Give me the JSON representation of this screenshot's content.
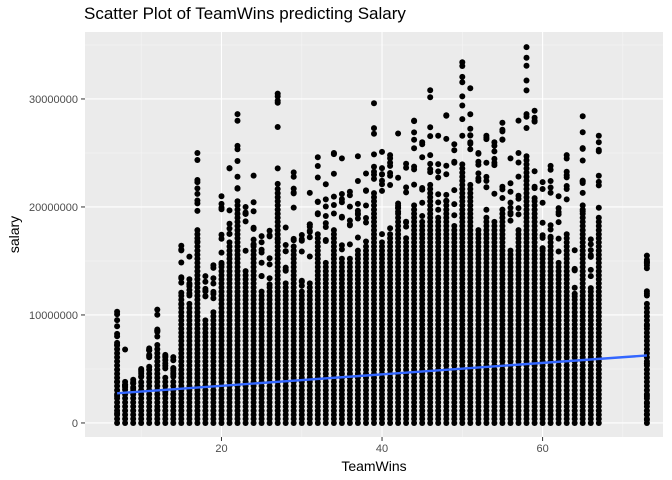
{
  "chart_data": {
    "type": "scatter",
    "title": "Scatter Plot of TeamWins predicting Salary",
    "xlabel": "TeamWins",
    "ylabel": "salary",
    "xlim": [
      3,
      75
    ],
    "ylim": [
      -1300000,
      36200000
    ],
    "x_ticks": [
      20,
      40,
      60
    ],
    "x_tick_labels": [
      "20",
      "40",
      "60"
    ],
    "y_ticks": [
      0,
      10000000,
      20000000,
      30000000
    ],
    "y_tick_labels": [
      "0",
      "10000000",
      "20000000",
      "30000000"
    ],
    "grid": true,
    "point_color": "#000000",
    "trend_line": {
      "color": "#3366ff",
      "x": [
        7,
        73
      ],
      "y": [
        2750000,
        6250000
      ]
    },
    "upper_envelope": [
      [
        7,
        10300000
      ],
      [
        8,
        3800000
      ],
      [
        9,
        4000000
      ],
      [
        10,
        5000000
      ],
      [
        11,
        6900000
      ],
      [
        12,
        10500000
      ],
      [
        13,
        6300000
      ],
      [
        14,
        5800000
      ],
      [
        15,
        16400000
      ],
      [
        16,
        15400000
      ],
      [
        17,
        25000000
      ],
      [
        18,
        13600000
      ],
      [
        19,
        14600000
      ],
      [
        20,
        21000000
      ],
      [
        21,
        23600000
      ],
      [
        22,
        28600000
      ],
      [
        23,
        20000000
      ],
      [
        24,
        22900000
      ],
      [
        25,
        17300000
      ],
      [
        26,
        17800000
      ],
      [
        27,
        30500000
      ],
      [
        28,
        18100000
      ],
      [
        29,
        23200000
      ],
      [
        30,
        17400000
      ],
      [
        31,
        18400000
      ],
      [
        32,
        24600000
      ],
      [
        33,
        20700000
      ],
      [
        34,
        25000000
      ],
      [
        35,
        21200000
      ],
      [
        36,
        21400000
      ],
      [
        37,
        22400000
      ],
      [
        38,
        23100000
      ],
      [
        39,
        29600000
      ],
      [
        40,
        23600000
      ],
      [
        41,
        24800000
      ],
      [
        42,
        26800000
      ],
      [
        43,
        24000000
      ],
      [
        44,
        28000000
      ],
      [
        45,
        26000000
      ],
      [
        46,
        30800000
      ],
      [
        47,
        26600000
      ],
      [
        48,
        28500000
      ],
      [
        49,
        25800000
      ],
      [
        50,
        33400000
      ],
      [
        51,
        31000000
      ],
      [
        52,
        25000000
      ],
      [
        53,
        26600000
      ],
      [
        54,
        26000000
      ],
      [
        55,
        27800000
      ],
      [
        56,
        22200000
      ],
      [
        57,
        25000000
      ],
      [
        58,
        34800000
      ],
      [
        59,
        28900000
      ],
      [
        60,
        22300000
      ],
      [
        61,
        23800000
      ],
      [
        62,
        21000000
      ],
      [
        63,
        24800000
      ],
      [
        64,
        16000000
      ],
      [
        65,
        28400000
      ],
      [
        66,
        17000000
      ],
      [
        67,
        26600000
      ],
      [
        73,
        15500000
      ]
    ],
    "extra_points": [
      [
        7,
        7200000
      ],
      [
        7,
        3800000
      ],
      [
        7,
        2500000
      ],
      [
        7,
        1500000
      ],
      [
        7,
        900000
      ],
      [
        8,
        6800000
      ],
      [
        10,
        3000000
      ],
      [
        11,
        5200000
      ],
      [
        12,
        1200000
      ],
      [
        13,
        2900000
      ],
      [
        14,
        6100000
      ],
      [
        15,
        13000000
      ],
      [
        15,
        11000000
      ],
      [
        16,
        12000000
      ],
      [
        17,
        22500000
      ],
      [
        17,
        20600000
      ],
      [
        17,
        16800000
      ],
      [
        20,
        14700000
      ],
      [
        22,
        22800000
      ],
      [
        24,
        19600000
      ],
      [
        27,
        17000000
      ],
      [
        29,
        22800000
      ],
      [
        31,
        21300000
      ],
      [
        33,
        22100000
      ],
      [
        35,
        24500000
      ],
      [
        37,
        24700000
      ],
      [
        39,
        22600000
      ],
      [
        40,
        25100000
      ],
      [
        41,
        23800000
      ],
      [
        42,
        22700000
      ],
      [
        44,
        26900000
      ],
      [
        46,
        24800000
      ],
      [
        48,
        26300000
      ],
      [
        50,
        26600000
      ],
      [
        51,
        26000000
      ],
      [
        53,
        24100000
      ],
      [
        55,
        27000000
      ],
      [
        56,
        24500000
      ],
      [
        57,
        28000000
      ],
      [
        58,
        28600000
      ],
      [
        59,
        28000000
      ],
      [
        61,
        22400000
      ],
      [
        63,
        20700000
      ],
      [
        65,
        24300000
      ],
      [
        65,
        21300000
      ],
      [
        65,
        19600000
      ],
      [
        66,
        13600000
      ],
      [
        67,
        22000000
      ],
      [
        73,
        14800000
      ],
      [
        73,
        12200000
      ],
      [
        73,
        11800000
      ],
      [
        73,
        9000000
      ],
      [
        73,
        5500000
      ],
      [
        73,
        2500000
      ],
      [
        73,
        1800000
      ],
      [
        73,
        800000
      ],
      [
        73,
        300000
      ]
    ]
  }
}
